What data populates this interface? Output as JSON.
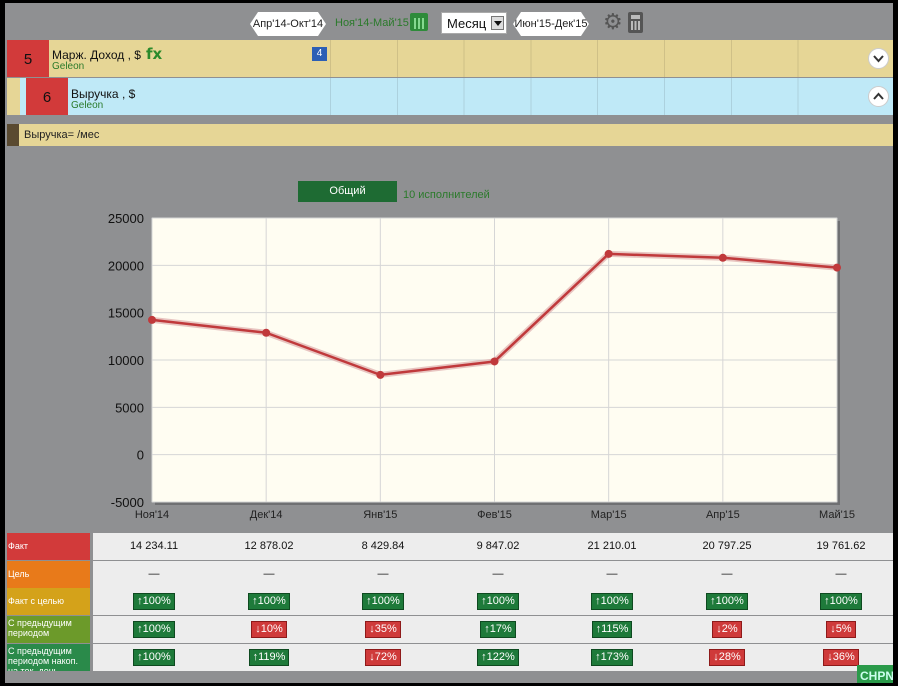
{
  "toolbar": {
    "prev_period": "Апр'14-Окт'14",
    "current_period": "Ноя'14-Май'15",
    "granularity": "Месяц",
    "next_period": "Июн'15-Дек'15"
  },
  "metrics": [
    {
      "number": "5",
      "title": "Марж. Доход , $",
      "source": "Geleon",
      "formula_icon": "fx",
      "badge": "4",
      "toggle": "chevron-down-icon"
    },
    {
      "number": "6",
      "title": "Выручка , $",
      "source": "Geleon",
      "toggle": "chevron-up-icon"
    }
  ],
  "formula_bar": {
    "text": "Выручка= /мес"
  },
  "chart_header": {
    "total_button": "Общий",
    "executors": "10  исполнителей"
  },
  "chart_data": {
    "type": "line",
    "categories": [
      "Ноя'14",
      "Дек'14",
      "Янв'15",
      "Фев'15",
      "Мар'15",
      "Апр'15",
      "Май'15"
    ],
    "series": [
      {
        "values": [
          14234.11,
          12878.02,
          8429.84,
          9847.02,
          21210.01,
          20797.25,
          19761.62
        ],
        "color": "#c0393b"
      }
    ],
    "y_ticks": [
      "25000",
      "20000",
      "15000",
      "10000",
      "5000",
      "0",
      "-5000"
    ],
    "ylim": [
      -5000,
      25000
    ],
    "grid": true,
    "background": "#fffdf2"
  },
  "table": {
    "rows": [
      {
        "label": "Факт",
        "color": "#d23a3a",
        "kind": "text",
        "cells": [
          "14 234.11",
          "12 878.02",
          "8 429.84",
          "9 847.02",
          "21 210.01",
          "20 797.25",
          "19 761.62"
        ]
      },
      {
        "label": "Цель",
        "color": "#e87a1a",
        "kind": "text",
        "cells": [
          "—",
          "—",
          "—",
          "—",
          "—",
          "—",
          "—"
        ]
      },
      {
        "label": "Факт с целью",
        "color": "#d4a21a",
        "kind": "pill",
        "cells": [
          {
            "text": "↑100%",
            "dir": "up"
          },
          {
            "text": "↑100%",
            "dir": "up"
          },
          {
            "text": "↑100%",
            "dir": "up"
          },
          {
            "text": "↑100%",
            "dir": "up"
          },
          {
            "text": "↑100%",
            "dir": "up"
          },
          {
            "text": "↑100%",
            "dir": "up"
          },
          {
            "text": "↑100%",
            "dir": "up"
          }
        ]
      },
      {
        "label": "С предыдущим периодом",
        "color": "#6c9a2a",
        "kind": "pill",
        "cells": [
          {
            "text": "↑100%",
            "dir": "up"
          },
          {
            "text": "↓10%",
            "dir": "down"
          },
          {
            "text": "↓35%",
            "dir": "down"
          },
          {
            "text": "↑17%",
            "dir": "up"
          },
          {
            "text": "↑115%",
            "dir": "up"
          },
          {
            "text": "↓2%",
            "dir": "down"
          },
          {
            "text": "↓5%",
            "dir": "down"
          }
        ]
      },
      {
        "label": "С предыдущим периодом накоп. на тек. день",
        "color": "#2a8a4a",
        "kind": "pill",
        "cells": [
          {
            "text": "↑100%",
            "dir": "up"
          },
          {
            "text": "↑119%",
            "dir": "up"
          },
          {
            "text": "↓72%",
            "dir": "down"
          },
          {
            "text": "↑122%",
            "dir": "up"
          },
          {
            "text": "↑173%",
            "dir": "up"
          },
          {
            "text": "↓28%",
            "dir": "down"
          },
          {
            "text": "↓36%",
            "dir": "down"
          }
        ]
      }
    ]
  },
  "corner_button": "СНРN"
}
